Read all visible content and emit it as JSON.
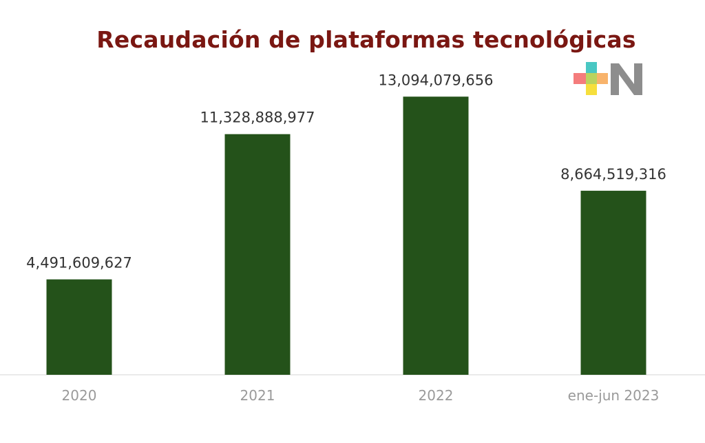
{
  "chart_data": {
    "type": "bar",
    "title": "Recaudación de plataformas tecnológicas",
    "categories": [
      "2020",
      "2021",
      "2022",
      "ene-jun 2023"
    ],
    "values": [
      4491609627,
      11328888977,
      13094079656,
      8664519316
    ],
    "data_labels": [
      "4,491,609,627",
      "11,328,888,977",
      "13,094,079,656",
      "8,664,519,316"
    ],
    "xlabel": "",
    "ylabel": "",
    "ylim": [
      0,
      15600000000
    ],
    "grid": false,
    "legend": "none",
    "bar_color": "#24521a"
  },
  "logo": {
    "name": "+N",
    "colors": [
      "#49c7c3",
      "#f47c7c",
      "#b9d35e",
      "#f8b36b",
      "#f6df3c",
      "#8d8d8d"
    ]
  }
}
